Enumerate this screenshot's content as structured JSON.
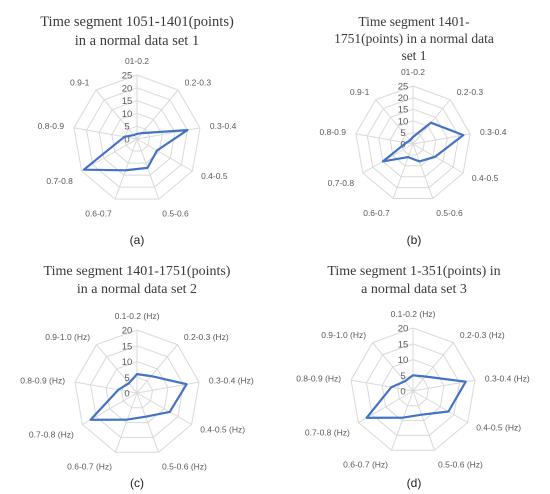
{
  "figure": {
    "captions": [
      "(a)",
      "(b)",
      "(c)",
      "(d)"
    ]
  },
  "chart_data": [
    {
      "type": "radar",
      "title_lines": [
        "Time segment 1051-1401(points)",
        "in a normal data set 1"
      ],
      "categories": [
        "01-0.2",
        "0.2-0.3",
        "0.3-0.4",
        "0.4-0.5",
        "0.5-0.6",
        "0.6-0.7",
        "0.7-0.8",
        "0.8-0.9",
        "0.9-1"
      ],
      "ticks": [
        "0",
        "5",
        "10",
        "15",
        "20",
        "25"
      ],
      "rmax": 25,
      "values": [
        2,
        3,
        20,
        9,
        12,
        13,
        24,
        5,
        2
      ],
      "color": "#4472c4"
    },
    {
      "type": "radar",
      "title_lines": [
        "Time segment 1401-",
        "1751(points) in a normal data",
        "set 1"
      ],
      "categories": [
        "01-0.2",
        "0.2-0.3",
        "0.3-0.4",
        "0.4-0.5",
        "0.5-0.6",
        "0.6-0.7",
        "0.7-0.8",
        "0.8-0.9",
        "0.9-1"
      ],
      "ticks": [
        "0",
        "5",
        "10",
        "15",
        "20",
        "25"
      ],
      "rmax": 25,
      "values": [
        3,
        12,
        22,
        11,
        8,
        6,
        15,
        3,
        2
      ],
      "color": "#4472c4"
    },
    {
      "type": "radar",
      "title_lines": [
        "Time segment 1401-1751(points)",
        "in a normal data set 2"
      ],
      "categories": [
        "0.1-0.2 (Hz)",
        "0.2-0.3 (Hz)",
        "0.3-0.4 (Hz)",
        "0.4-0.5 (Hz)",
        "0.5-0.6 (Hz)",
        "0.6-0.7 (Hz)",
        "0.7-0.8 (Hz)",
        "0.8-0.9 (Hz)",
        "0.9-1.0 (Hz)"
      ],
      "ticks": [
        "0",
        "5",
        "10",
        "15",
        "20"
      ],
      "rmax": 20,
      "values": [
        6,
        7,
        16,
        12,
        8,
        9,
        17,
        6,
        4
      ],
      "color": "#4472c4"
    },
    {
      "type": "radar",
      "title_lines": [
        "Time segment 1-351(points) in",
        "a normal data set 3"
      ],
      "categories": [
        "0.1-0.2 (Hz)",
        "0.2-0.3 (Hz)",
        "0.3-0.4 (Hz)",
        "0.4-0.5 (Hz)",
        "0.5-0.6 (Hz)",
        "0.6-0.7 (Hz)",
        "0.7-0.8 (Hz)",
        "0.8-0.9 (Hz)",
        "0.9-1.0 (Hz)"
      ],
      "ticks": [
        "0",
        "5",
        "10",
        "15",
        "20"
      ],
      "rmax": 20,
      "values": [
        5,
        6,
        17,
        13,
        8,
        9,
        17,
        7,
        4
      ],
      "color": "#4472c4"
    }
  ]
}
